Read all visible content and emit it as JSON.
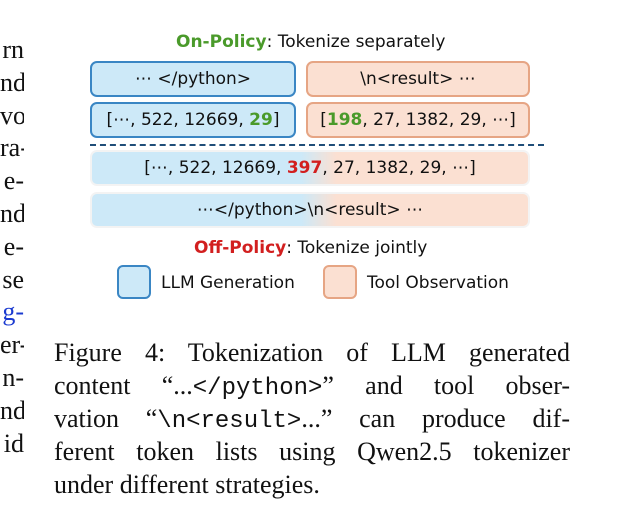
{
  "left_column_fragments": [
    "rn",
    "nd",
    "vo",
    "ra-",
    "e-",
    "nd",
    "e-",
    "se",
    "g-",
    "er-",
    "n-",
    "nd",
    "id"
  ],
  "diagram": {
    "on_policy": {
      "label": "On-Policy",
      "rest": ": Tokenize separately"
    },
    "off_policy": {
      "label": "Off-Policy",
      "rest": ": Tokenize jointly"
    },
    "boxes": {
      "llm_text": "⋯ </python>",
      "tool_text": "\\n<result> ⋯",
      "llm_tokens_prefix": "[⋯, 522, 12669, ",
      "llm_tokens_highlight": "29",
      "llm_tokens_suffix": "]",
      "tool_tokens_prefix": "[",
      "tool_tokens_highlight": "198",
      "tool_tokens_suffix": ",  27, 1382, 29, ⋯]",
      "joint_tokens_prefix": "[⋯, 522, 12669, ",
      "joint_tokens_highlight": "397",
      "joint_tokens_suffix": ", 27, 1382, 29, ⋯]",
      "joint_text": "⋯</python>\\n<result> ⋯"
    },
    "legend": {
      "llm": "LLM Generation",
      "tool": "Tool Observation"
    },
    "colors": {
      "llm_fill": "#cde9f8",
      "llm_border": "#3a86c4",
      "tool_fill": "#fbe0d2",
      "tool_border": "#e6a584",
      "on_policy": "#4a9a2a",
      "off_policy": "#d21f1f"
    }
  },
  "caption": {
    "l1": "Figure 4:  Tokenization of LLM generated",
    "l2a": "content “...",
    "l2code": "</python>",
    "l2b": "” and tool obser-",
    "l3a": "vation “",
    "l3code": "\\n<result>",
    "l3b": "...” can produce dif-",
    "l4": "ferent token lists using Qwen2.5 tokenizer",
    "l5": "under different strategies."
  }
}
